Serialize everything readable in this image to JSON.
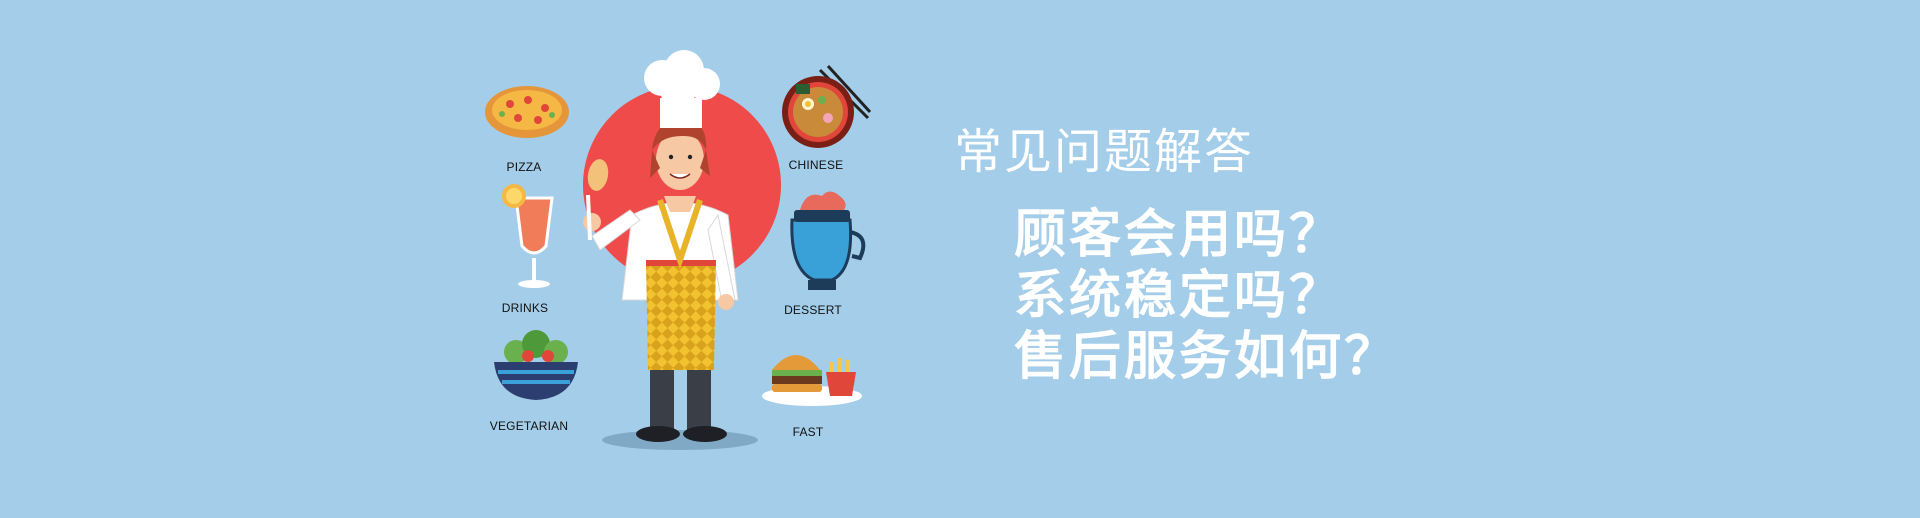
{
  "illustration": {
    "food_labels": {
      "pizza": "PIZZA",
      "chinese": "CHINESE",
      "drinks": "DRINKS",
      "dessert": "DESSERT",
      "vegetarian": "VEGETARIAN",
      "fast": "FAST"
    },
    "colors": {
      "background": "#a3cde8",
      "red_circle": "#ef4b4b",
      "apron_yellow": "#f2c230",
      "apron_red": "#e0463a",
      "dessert_blue": "#3aa0d8"
    }
  },
  "faq": {
    "title": "常见问题解答",
    "questions": [
      "顾客会用吗？",
      "系统稳定吗？",
      "售后服务如何？"
    ]
  }
}
